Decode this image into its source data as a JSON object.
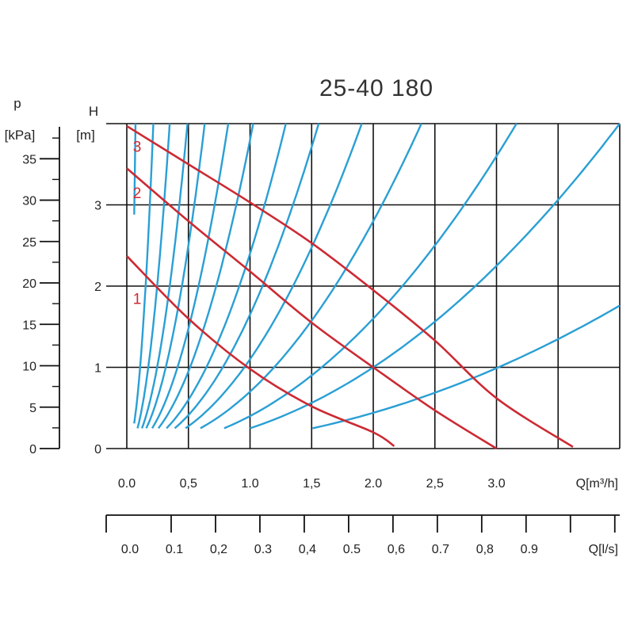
{
  "chart_data": {
    "type": "line",
    "title": "25-40 180",
    "left_axis": {
      "label_top": "p",
      "label_unit": "[kPa]",
      "ticks": [
        "0",
        "5",
        "10",
        "15",
        "20",
        "25",
        "30",
        "35"
      ],
      "tick_values": [
        0,
        5,
        10,
        15,
        20,
        25,
        30,
        35
      ],
      "range": [
        0,
        40
      ]
    },
    "y_axis": {
      "label_top": "H",
      "label_unit": "[m]",
      "ticks": [
        "0",
        "1",
        "2",
        "3"
      ],
      "tick_values": [
        0,
        1,
        2,
        3
      ],
      "range": [
        0,
        4
      ]
    },
    "x_axis": {
      "label": "Q[m³/h]",
      "ticks": [
        "0.0",
        "0,5",
        "1.0",
        "1,5",
        "2.0",
        "2,5",
        "3.0"
      ],
      "tick_values": [
        0,
        0.5,
        1.0,
        1.5,
        2.0,
        2.5,
        3.0
      ],
      "range": [
        0,
        4.0
      ]
    },
    "x2_axis": {
      "label": "Q[l/s]",
      "ticks": [
        "0.0",
        "0.1",
        "0,2",
        "0.3",
        "0,4",
        "0.5",
        "0,6",
        "0.7",
        "0,8",
        "0.9"
      ],
      "tick_values": [
        0,
        0.1,
        0.2,
        0.3,
        0.4,
        0.5,
        0.6,
        0.7,
        0.8,
        0.9
      ],
      "range": [
        0,
        1.1111
      ]
    },
    "grid": true,
    "series": [
      {
        "name": "1",
        "color": "#cc2a33",
        "points": [
          [
            0,
            2.37
          ],
          [
            0.5,
            1.6
          ],
          [
            1.0,
            0.98
          ],
          [
            1.5,
            0.52
          ],
          [
            2.0,
            0.2
          ],
          [
            2.17,
            0.03
          ]
        ]
      },
      {
        "name": "2",
        "color": "#cc2a33",
        "points": [
          [
            0,
            3.45
          ],
          [
            0.5,
            2.8
          ],
          [
            1.0,
            2.18
          ],
          [
            1.5,
            1.55
          ],
          [
            2.0,
            1.0
          ],
          [
            2.5,
            0.47
          ],
          [
            3.0,
            0.0
          ]
        ]
      },
      {
        "name": "3",
        "color": "#cc2a33",
        "points": [
          [
            0,
            3.97
          ],
          [
            0.5,
            3.5
          ],
          [
            1.0,
            3.03
          ],
          [
            1.5,
            2.53
          ],
          [
            2.0,
            1.95
          ],
          [
            2.5,
            1.33
          ],
          [
            3.0,
            0.62
          ],
          [
            3.62,
            0.02
          ]
        ]
      }
    ],
    "system_curves": {
      "color": "#2a9fd4",
      "description_k": [
        800,
        86,
        33,
        16.5,
        10,
        5.9,
        3.8,
        2.4,
        1.65,
        1.1,
        0.7,
        0.4,
        0.25,
        0.11
      ]
    }
  }
}
